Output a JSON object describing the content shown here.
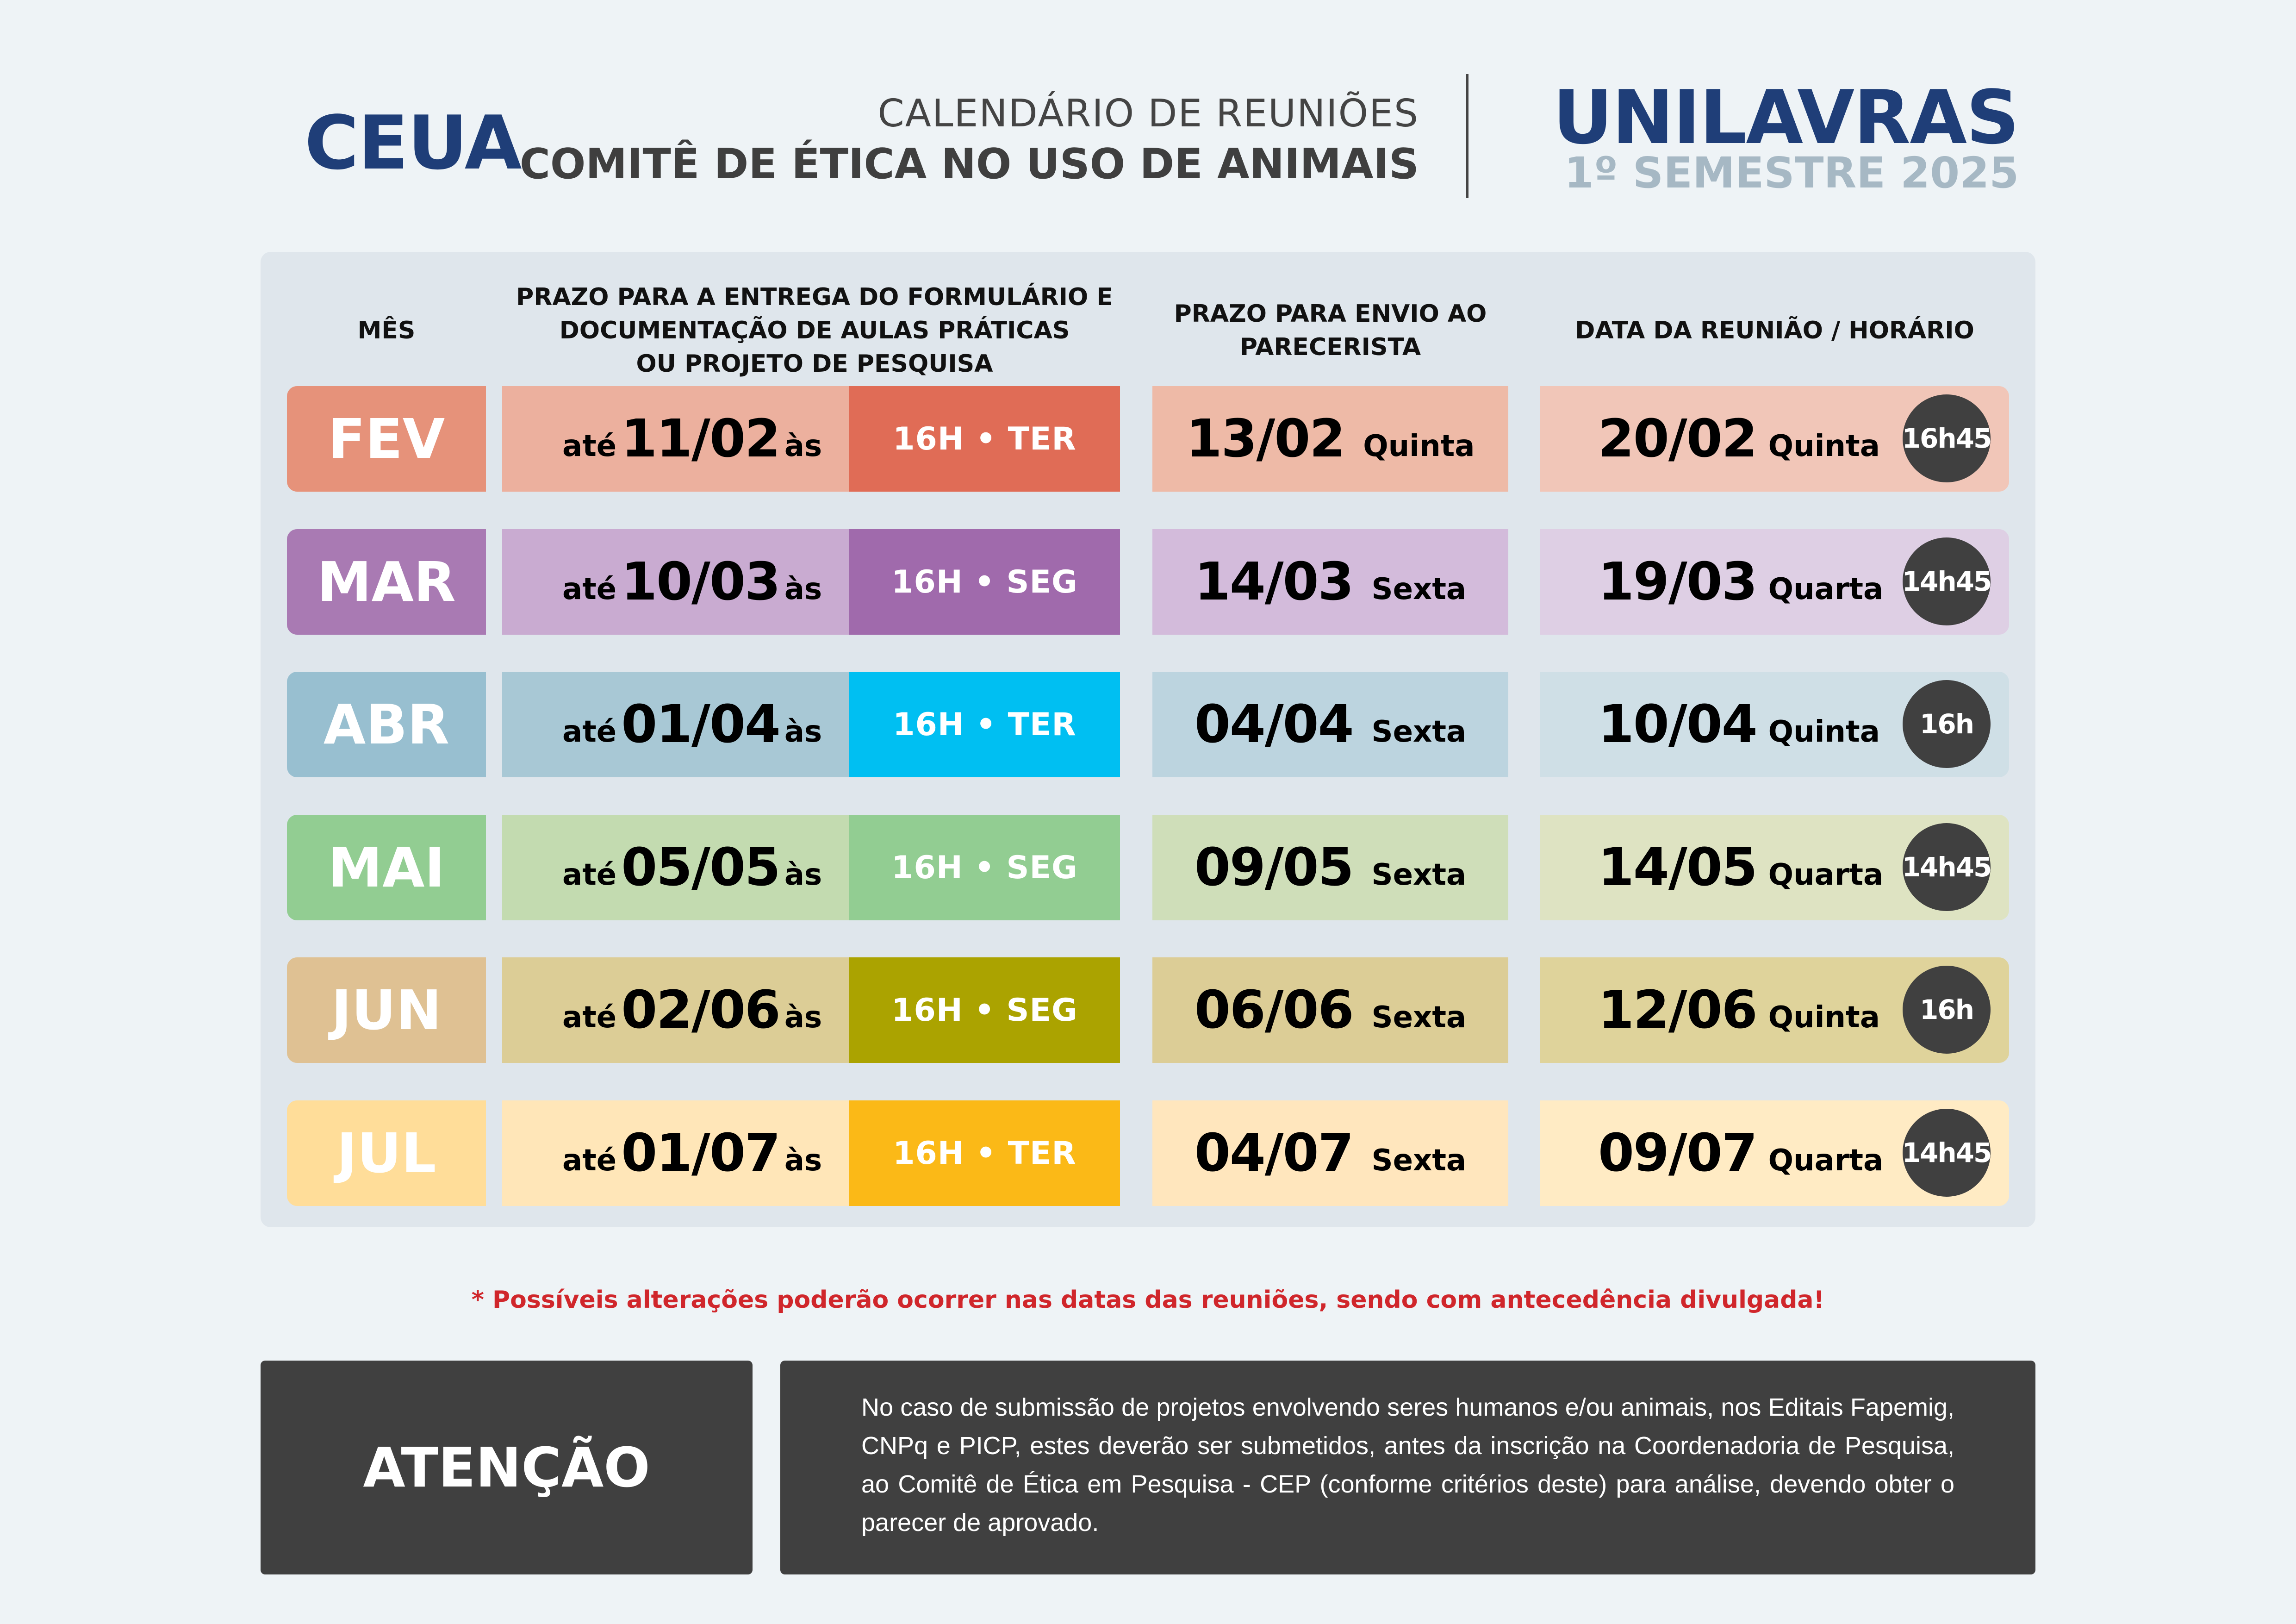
{
  "header": {
    "org_short": "CEUA",
    "subtitle": "CALENDÁRIO DE REUNIÕES",
    "title": "COMITÊ DE ÉTICA NO USO DE ANIMAIS",
    "brand": "UNILAVRAS",
    "semester": "1º SEMESTRE 2025",
    "brand_color": "#1f3e78",
    "semester_color": "#a6b8c4"
  },
  "table": {
    "columns": [
      "MÊS",
      "PRAZO PARA A ENTREGA DO FORMULÁRIO E DOCUMENTAÇÃO DE AULAS PRÁTICAS OU PROJETO DE PESQUISA",
      "PRAZO PARA ENVIO AO PARECERISTA",
      "DATA DA REUNIÃO / HORÁRIO"
    ],
    "col2_lines": [
      "PRAZO PARA A ENTREGA DO FORMULÁRIO E",
      "DOCUMENTAÇÃO DE AULAS PRÁTICAS",
      "OU PROJETO DE PESQUISA"
    ],
    "col3_lines": [
      "PRAZO PARA ENVIO AO",
      "PARECERISTA"
    ],
    "prefix": "até",
    "suffix": "às",
    "rows": [
      {
        "month": "FEV",
        "deadline": "11/02",
        "deadline_time": "16H • TER",
        "parecerista": "13/02",
        "parecerista_day": "Quinta",
        "meeting": "20/02",
        "meeting_day": "Quinta",
        "meeting_time": "16h45",
        "colors": {
          "month": "#e6927a",
          "deadline": "#ecb09e",
          "time": "#e06c56",
          "parecerista": "#eebaa7",
          "meeting": "#f1c6b8"
        }
      },
      {
        "month": "MAR",
        "deadline": "10/03",
        "deadline_time": "16H • SEG",
        "parecerista": "14/03",
        "parecerista_day": "Sexta",
        "meeting": "19/03",
        "meeting_day": "Quarta",
        "meeting_time": "14h45",
        "colors": {
          "month": "#a97ab3",
          "deadline": "#c9abd1",
          "time": "#a06aac",
          "parecerista": "#d3bbdb",
          "meeting": "#decfe4"
        }
      },
      {
        "month": "ABR",
        "deadline": "01/04",
        "deadline_time": "16H • TER",
        "parecerista": "04/04",
        "parecerista_day": "Sexta",
        "meeting": "10/04",
        "meeting_day": "Quinta",
        "meeting_time": "16h",
        "colors": {
          "month": "#98bfd0",
          "deadline": "#a8c8d5",
          "time": "#00bff2",
          "parecerista": "#bcd4df",
          "meeting": "#cfdfe6"
        }
      },
      {
        "month": "MAI",
        "deadline": "05/05",
        "deadline_time": "16H • SEG",
        "parecerista": "09/05",
        "parecerista_day": "Sexta",
        "meeting": "14/05",
        "meeting_day": "Quarta",
        "meeting_time": "14h45",
        "colors": {
          "month": "#92cd92",
          "deadline": "#c3dbb0",
          "time": "#92cd92",
          "parecerista": "#cfdeb9",
          "meeting": "#dee3c2"
        }
      },
      {
        "month": "JUN",
        "deadline": "02/06",
        "deadline_time": "16H • SEG",
        "parecerista": "06/06",
        "parecerista_day": "Sexta",
        "meeting": "12/06",
        "meeting_day": "Quinta",
        "meeting_time": "16h",
        "colors": {
          "month": "#dfc193",
          "deadline": "#dccd96",
          "time": "#aba300",
          "parecerista": "#dccd96",
          "meeting": "#dfd39b"
        }
      },
      {
        "month": "JUL",
        "deadline": "01/07",
        "deadline_time": "16H • TER",
        "parecerista": "04/07",
        "parecerista_day": "Sexta",
        "meeting": "09/07",
        "meeting_day": "Quarta",
        "meeting_time": "14h45",
        "colors": {
          "month": "#ffdd99",
          "deadline": "#ffe6b8",
          "time": "#fbb917",
          "parecerista": "#ffe6bd",
          "meeting": "#ffebc4"
        }
      }
    ]
  },
  "footer": {
    "note": "* Possíveis alterações poderão ocorrer nas  datas das reuniões, sendo com antecedência divulgada!",
    "attention_label": "ATENÇÃO",
    "attention_text": "No caso de submissão de projetos envolvendo seres humanos e/ou animais, nos Editais Fapemig, CNPq e PICP, estes deverão ser submetidos, antes da inscrição na Coordenadoria de Pesquisa, ao Comitê de Ética em Pesquisa - CEP (conforme critérios deste) para análise, devendo obter o parecer de aprovado.",
    "note_color": "#d0262b",
    "box_color": "#404040"
  }
}
